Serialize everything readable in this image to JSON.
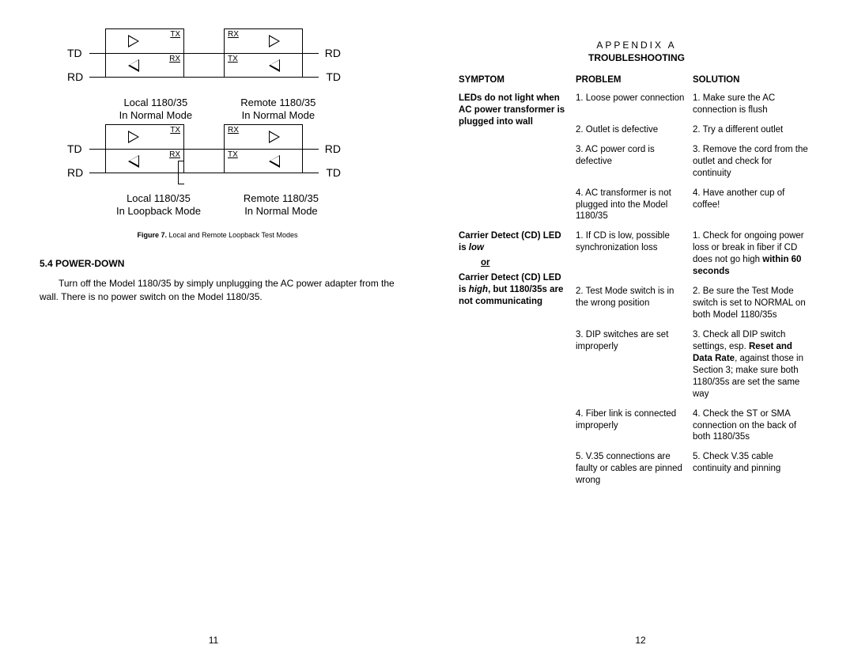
{
  "left": {
    "diagram": {
      "signals": [
        "TD",
        "RD"
      ],
      "ports": {
        "tx": "TX",
        "rx": "RX"
      },
      "captions": {
        "localNormal1": "Local 1180/35",
        "localNormal2": "In Normal Mode",
        "remoteNormal1": "Remote 1180/35",
        "remoteNormal2": "In Normal Mode",
        "localLoop1": "Local 1180/35",
        "localLoop2": "In Loopback Mode",
        "remoteLoop1": "Remote 1180/35",
        "remoteLoop2": "In Normal Mode"
      }
    },
    "figureLabel": "Figure 7.",
    "figureText": "Local and Remote Loopback Test Modes",
    "sectionNum": "5.4",
    "sectionTitle": "POWER-DOWN",
    "bodyText": "Turn off the Model 1180/35 by simply unplugging the AC power adapter from the wall.  There is no power switch on the Model 1180/35.",
    "pageNum": "11"
  },
  "right": {
    "appendix": "APPENDIX A",
    "title": "TROUBLESHOOTING",
    "headers": {
      "symptom": "SYMPTOM",
      "problem": "PROBLEM",
      "solution": "SOLUTION"
    },
    "rows": [
      {
        "symptom": "LEDs do not light when AC power transformer is plugged into wall",
        "problems": [
          "1. Loose power connection",
          "2. Outlet is defective",
          "3. AC power cord is defective",
          "4. AC transformer is not plugged into the Model 1180/35"
        ],
        "solutions": [
          "1. Make sure the AC connection is flush",
          "2. Try a different outlet",
          "3. Remove the cord from the outlet and check for continuity",
          "4. Have another cup of coffee!"
        ]
      },
      {
        "symptom_html": "Carrier Detect (CD) LED is <i>low</i><span class='or'>or</span>Carrier Detect (CD) LED is <i>high</i>, but 1180/35s are not communicating",
        "problems": [
          "1. If CD is low, possible synchronization loss",
          "2. Test Mode switch is in the wrong position",
          "3. DIP switches are set improperly",
          "4. Fiber link is connected improperly",
          "5. V.35 connections are faulty or cables are pinned wrong"
        ],
        "solutions_html": [
          "1. Check for ongoing power loss or break in fiber if CD does not go high <b>within 60 seconds</b>",
          "2. Be sure the Test Mode switch is set to NORMAL on both Model 1180/35s",
          "3. Check all DIP switch settings, esp. <b>Reset and Data Rate</b>, against those in Section 3; make sure both 1180/35s are set the same way",
          "4. Check the ST or SMA connection on the back of both 1180/35s",
          "5. Check V.35 cable continuity and pinning"
        ]
      }
    ],
    "pageNum": "12"
  }
}
